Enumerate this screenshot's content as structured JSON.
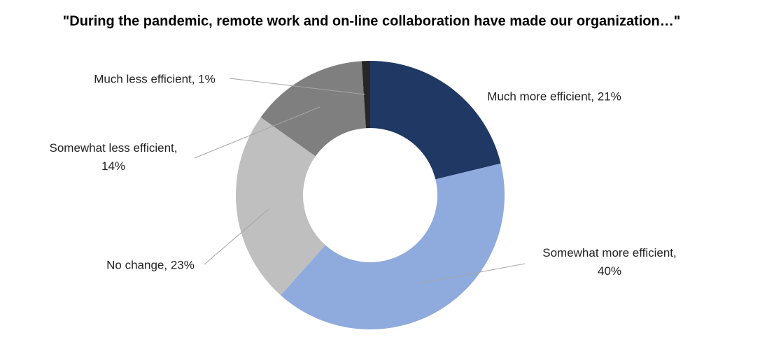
{
  "chart_data": {
    "type": "donut",
    "title": "\"During the pandemic, remote work and on-line collaboration have made our organization…\"",
    "values": [
      21,
      40,
      23,
      14,
      1
    ],
    "value_labels": [
      "Much more efficient, 21%",
      "Somewhat more efficient,\n40%",
      "No change, 23%",
      "Somewhat less efficient,\n14%",
      "Much less efficient, 1%"
    ],
    "colors": [
      "#203864",
      "#8faadc",
      "#bfbfbf",
      "#7f7f7f",
      "#262626"
    ]
  }
}
